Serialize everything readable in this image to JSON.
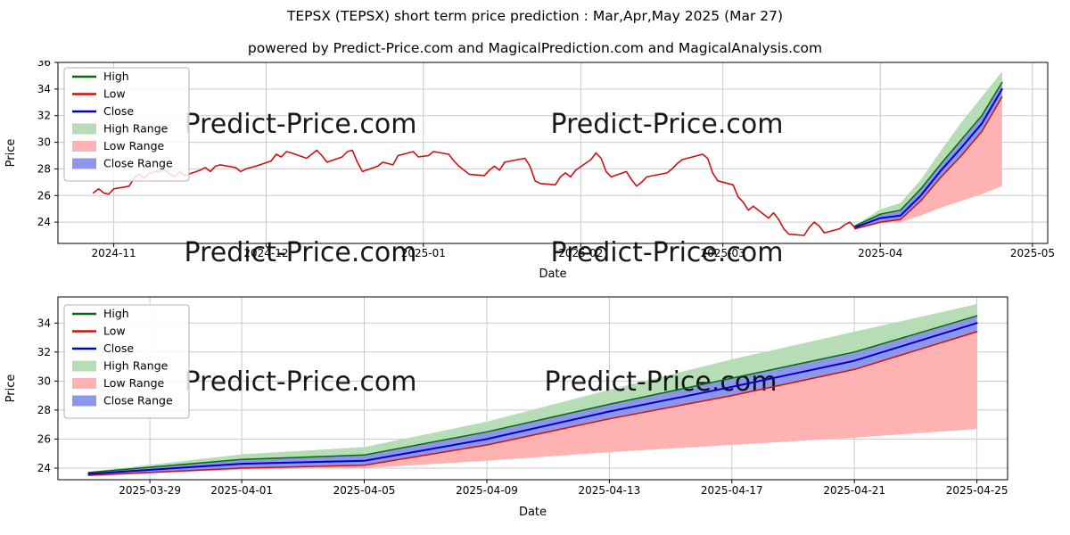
{
  "page": {
    "title": "TEPSX (TEPSX) short term price prediction : Mar,Apr,May 2025 (Mar 27)",
    "subtitle": "powered by Predict-Price.com and MagicalPrediction.com and MagicalAnalysis.com"
  },
  "watermark_text": "Predict-Price.com",
  "colors": {
    "grid": "#c9c9c9",
    "axis": "#000000",
    "watermark": "#cccccc",
    "background": "#ffffff",
    "high_line": "#007000",
    "low_line": "#cc1111",
    "close_line": "#0000cc",
    "high_range": "#b7ddb7",
    "low_range": "#ffb2b2",
    "close_range": "#8e96ea"
  },
  "legend": [
    {
      "label": "High",
      "swatch": "line",
      "color": "#007000"
    },
    {
      "label": "Low",
      "swatch": "line",
      "color": "#cc1111"
    },
    {
      "label": "Close",
      "swatch": "line",
      "color": "#0000cc"
    },
    {
      "label": "High Range",
      "swatch": "band",
      "color": "#b7ddb7"
    },
    {
      "label": "Low Range",
      "swatch": "band",
      "color": "#ffb2b2"
    },
    {
      "label": "Close Range",
      "swatch": "band",
      "color": "#8e96ea"
    }
  ],
  "chart_data": [
    {
      "id": "history-and-prediction",
      "type": "line",
      "xlabel": "Date",
      "ylabel": "Price",
      "xlim": [
        "2024-10-21",
        "2025-05-04"
      ],
      "ylim": [
        22.4,
        36
      ],
      "y_ticks": [
        24,
        26,
        28,
        30,
        32,
        34,
        36
      ],
      "x_ticks": [
        {
          "value": "2024-11-01",
          "label": "2024-11"
        },
        {
          "value": "2024-12-01",
          "label": "2024-12"
        },
        {
          "value": "2025-01-01",
          "label": "2025-01"
        },
        {
          "value": "2025-02-01",
          "label": "2025-02"
        },
        {
          "value": "2025-03-01",
          "label": "2025-03"
        },
        {
          "value": "2025-04-01",
          "label": "2025-04"
        },
        {
          "value": "2025-05-01",
          "label": "2025-05"
        }
      ],
      "watermarks": [
        {
          "x": 0.245,
          "y": 0.39
        },
        {
          "x": 0.615,
          "y": 0.39
        },
        {
          "x": 0.245,
          "y": 1.1
        },
        {
          "x": 0.615,
          "y": 1.1
        }
      ],
      "bands": [
        {
          "name": "High Range",
          "color": "#b7ddb7",
          "dates": [
            "2025-03-27",
            "2025-04-01",
            "2025-04-05",
            "2025-04-09",
            "2025-04-13",
            "2025-04-17",
            "2025-04-21",
            "2025-04-25"
          ],
          "upper": [
            23.75,
            24.95,
            25.45,
            27.2,
            29.4,
            31.5,
            33.4,
            35.3
          ],
          "lower": [
            23.7,
            24.6,
            24.9,
            26.5,
            28.4,
            30.2,
            32.0,
            34.5
          ]
        },
        {
          "name": "Low Range",
          "color": "#ffb2b2",
          "dates": [
            "2025-03-27",
            "2025-04-01",
            "2025-04-05",
            "2025-04-09",
            "2025-04-13",
            "2025-04-17",
            "2025-04-21",
            "2025-04-25"
          ],
          "upper": [
            23.5,
            24.0,
            24.2,
            25.6,
            27.4,
            29.0,
            30.8,
            33.4
          ],
          "lower": [
            23.45,
            23.9,
            24.0,
            24.5,
            25.1,
            25.6,
            26.1,
            26.7
          ]
        },
        {
          "name": "Close Range",
          "color": "#8e96ea",
          "dates": [
            "2025-03-27",
            "2025-04-01",
            "2025-04-05",
            "2025-04-09",
            "2025-04-13",
            "2025-04-17",
            "2025-04-21",
            "2025-04-25"
          ],
          "upper": [
            23.7,
            24.6,
            24.9,
            26.5,
            28.4,
            30.2,
            32.0,
            34.5
          ],
          "lower": [
            23.5,
            24.0,
            24.2,
            25.6,
            27.4,
            29.0,
            30.8,
            33.4
          ]
        }
      ],
      "series": [
        {
          "name": "High",
          "color": "#007000",
          "width": 1.5,
          "dates": [
            "2025-03-27",
            "2025-04-01",
            "2025-04-05",
            "2025-04-09",
            "2025-04-13",
            "2025-04-17",
            "2025-04-21",
            "2025-04-25"
          ],
          "values": [
            23.7,
            24.6,
            24.9,
            26.5,
            28.4,
            30.2,
            32.0,
            34.5
          ]
        },
        {
          "name": "Low forecast",
          "color": "#cc1111",
          "width": 1.5,
          "dates": [
            "2025-03-27",
            "2025-04-01",
            "2025-04-05",
            "2025-04-09",
            "2025-04-13",
            "2025-04-17",
            "2025-04-21",
            "2025-04-25"
          ],
          "values": [
            23.5,
            24.0,
            24.2,
            25.6,
            27.4,
            29.0,
            30.8,
            33.4
          ]
        },
        {
          "name": "Close",
          "color": "#0000cc",
          "width": 2,
          "dates": [
            "2025-03-27",
            "2025-04-01",
            "2025-04-05",
            "2025-04-09",
            "2025-04-13",
            "2025-04-17",
            "2025-04-21",
            "2025-04-25"
          ],
          "values": [
            23.6,
            24.3,
            24.5,
            26.0,
            27.9,
            29.6,
            31.4,
            34.0
          ]
        },
        {
          "name": "Low history",
          "color": "#cc1111",
          "width": 1.6,
          "dates": [
            "2024-10-28",
            "2024-10-29",
            "2024-10-30",
            "2024-10-31",
            "2024-11-01",
            "2024-11-04",
            "2024-11-05",
            "2024-11-06",
            "2024-11-07",
            "2024-11-08",
            "2024-11-11",
            "2024-11-12",
            "2024-11-13",
            "2024-11-14",
            "2024-11-15",
            "2024-11-18",
            "2024-11-19",
            "2024-11-20",
            "2024-11-21",
            "2024-11-22",
            "2024-11-25",
            "2024-11-26",
            "2024-11-27",
            "2024-11-29",
            "2024-12-02",
            "2024-12-03",
            "2024-12-04",
            "2024-12-05",
            "2024-12-06",
            "2024-12-09",
            "2024-12-10",
            "2024-12-11",
            "2024-12-12",
            "2024-12-13",
            "2024-12-16",
            "2024-12-17",
            "2024-12-18",
            "2024-12-19",
            "2024-12-20",
            "2024-12-23",
            "2024-12-24",
            "2024-12-26",
            "2024-12-27",
            "2024-12-30",
            "2024-12-31",
            "2025-01-02",
            "2025-01-03",
            "2025-01-06",
            "2025-01-07",
            "2025-01-08",
            "2025-01-10",
            "2025-01-13",
            "2025-01-14",
            "2025-01-15",
            "2025-01-16",
            "2025-01-17",
            "2025-01-21",
            "2025-01-22",
            "2025-01-23",
            "2025-01-24",
            "2025-01-27",
            "2025-01-28",
            "2025-01-29",
            "2025-01-30",
            "2025-01-31",
            "2025-02-03",
            "2025-02-04",
            "2025-02-05",
            "2025-02-06",
            "2025-02-07",
            "2025-02-10",
            "2025-02-11",
            "2025-02-12",
            "2025-02-13",
            "2025-02-14",
            "2025-02-18",
            "2025-02-19",
            "2025-02-20",
            "2025-02-21",
            "2025-02-24",
            "2025-02-25",
            "2025-02-26",
            "2025-02-27",
            "2025-02-28",
            "2025-03-03",
            "2025-03-04",
            "2025-03-05",
            "2025-03-06",
            "2025-03-07",
            "2025-03-10",
            "2025-03-11",
            "2025-03-12",
            "2025-03-13",
            "2025-03-14",
            "2025-03-17",
            "2025-03-18",
            "2025-03-19",
            "2025-03-20",
            "2025-03-21",
            "2025-03-24",
            "2025-03-25",
            "2025-03-26",
            "2025-03-27"
          ],
          "values": [
            26.2,
            26.5,
            26.2,
            26.1,
            26.5,
            26.7,
            27.3,
            27.6,
            27.3,
            27.7,
            27.9,
            27.6,
            27.4,
            27.8,
            27.5,
            27.9,
            28.1,
            27.8,
            28.2,
            28.3,
            28.1,
            27.8,
            28.0,
            28.2,
            28.6,
            29.1,
            28.9,
            29.3,
            29.2,
            28.8,
            29.1,
            29.4,
            29.0,
            28.5,
            28.9,
            29.3,
            29.4,
            28.5,
            27.8,
            28.2,
            28.5,
            28.3,
            29.0,
            29.3,
            28.9,
            29.0,
            29.3,
            29.1,
            28.6,
            28.2,
            27.6,
            27.5,
            27.9,
            28.2,
            27.9,
            28.5,
            28.8,
            28.2,
            27.1,
            26.9,
            26.8,
            27.4,
            27.7,
            27.4,
            27.9,
            28.7,
            29.2,
            28.8,
            27.8,
            27.4,
            27.8,
            27.2,
            26.7,
            27.0,
            27.4,
            27.7,
            28.0,
            28.4,
            28.7,
            29.0,
            29.1,
            28.8,
            27.7,
            27.1,
            26.8,
            25.9,
            25.5,
            24.9,
            25.2,
            24.3,
            24.7,
            24.2,
            23.5,
            23.1,
            23.0,
            23.6,
            24.0,
            23.7,
            23.2,
            23.5,
            23.8,
            24.0,
            23.6
          ]
        }
      ]
    },
    {
      "id": "forecast-detail",
      "type": "line",
      "xlabel": "Date",
      "ylabel": "Price",
      "xlim": [
        "2025-03-26",
        "2025-04-26"
      ],
      "ylim": [
        23.2,
        35.8
      ],
      "y_ticks": [
        24,
        26,
        28,
        30,
        32,
        34
      ],
      "x_ticks": [
        {
          "value": "2025-03-29",
          "label": "2025-03-29"
        },
        {
          "value": "2025-04-01",
          "label": "2025-04-01"
        },
        {
          "value": "2025-04-05",
          "label": "2025-04-05"
        },
        {
          "value": "2025-04-09",
          "label": "2025-04-09"
        },
        {
          "value": "2025-04-13",
          "label": "2025-04-13"
        },
        {
          "value": "2025-04-17",
          "label": "2025-04-17"
        },
        {
          "value": "2025-04-21",
          "label": "2025-04-21"
        },
        {
          "value": "2025-04-25",
          "label": "2025-04-25"
        }
      ],
      "watermarks": [
        {
          "x": 0.255,
          "y": 0.51
        },
        {
          "x": 0.635,
          "y": 0.51
        }
      ],
      "bands": [
        {
          "name": "High Range",
          "color": "#b7ddb7",
          "dates": [
            "2025-03-27",
            "2025-04-01",
            "2025-04-05",
            "2025-04-09",
            "2025-04-13",
            "2025-04-17",
            "2025-04-21",
            "2025-04-25"
          ],
          "upper": [
            23.75,
            24.95,
            25.45,
            27.2,
            29.4,
            31.5,
            33.4,
            35.3
          ],
          "lower": [
            23.7,
            24.6,
            24.9,
            26.5,
            28.4,
            30.2,
            32.0,
            34.5
          ]
        },
        {
          "name": "Low Range",
          "color": "#ffb2b2",
          "dates": [
            "2025-03-27",
            "2025-04-01",
            "2025-04-05",
            "2025-04-09",
            "2025-04-13",
            "2025-04-17",
            "2025-04-21",
            "2025-04-25"
          ],
          "upper": [
            23.5,
            24.0,
            24.2,
            25.6,
            27.4,
            29.0,
            30.8,
            33.4
          ],
          "lower": [
            23.45,
            23.9,
            24.0,
            24.5,
            25.1,
            25.6,
            26.1,
            26.7
          ]
        },
        {
          "name": "Close Range",
          "color": "#8e96ea",
          "dates": [
            "2025-03-27",
            "2025-04-01",
            "2025-04-05",
            "2025-04-09",
            "2025-04-13",
            "2025-04-17",
            "2025-04-21",
            "2025-04-25"
          ],
          "upper": [
            23.7,
            24.6,
            24.9,
            26.5,
            28.4,
            30.2,
            32.0,
            34.5
          ],
          "lower": [
            23.5,
            24.0,
            24.2,
            25.6,
            27.4,
            29.0,
            30.8,
            33.4
          ]
        }
      ],
      "series": [
        {
          "name": "High",
          "color": "#007000",
          "width": 1.5,
          "dates": [
            "2025-03-27",
            "2025-04-01",
            "2025-04-05",
            "2025-04-09",
            "2025-04-13",
            "2025-04-17",
            "2025-04-21",
            "2025-04-25"
          ],
          "values": [
            23.7,
            24.6,
            24.9,
            26.5,
            28.4,
            30.2,
            32.0,
            34.5
          ]
        },
        {
          "name": "Low forecast",
          "color": "#cc1111",
          "width": 1.5,
          "dates": [
            "2025-03-27",
            "2025-04-01",
            "2025-04-05",
            "2025-04-09",
            "2025-04-13",
            "2025-04-17",
            "2025-04-21",
            "2025-04-25"
          ],
          "values": [
            23.5,
            24.0,
            24.2,
            25.6,
            27.4,
            29.0,
            30.8,
            33.4
          ]
        },
        {
          "name": "Close",
          "color": "#0000cc",
          "width": 2,
          "dates": [
            "2025-03-27",
            "2025-04-01",
            "2025-04-05",
            "2025-04-09",
            "2025-04-13",
            "2025-04-17",
            "2025-04-21",
            "2025-04-25"
          ],
          "values": [
            23.6,
            24.3,
            24.5,
            26.0,
            27.9,
            29.6,
            31.4,
            34.0
          ]
        }
      ]
    }
  ]
}
